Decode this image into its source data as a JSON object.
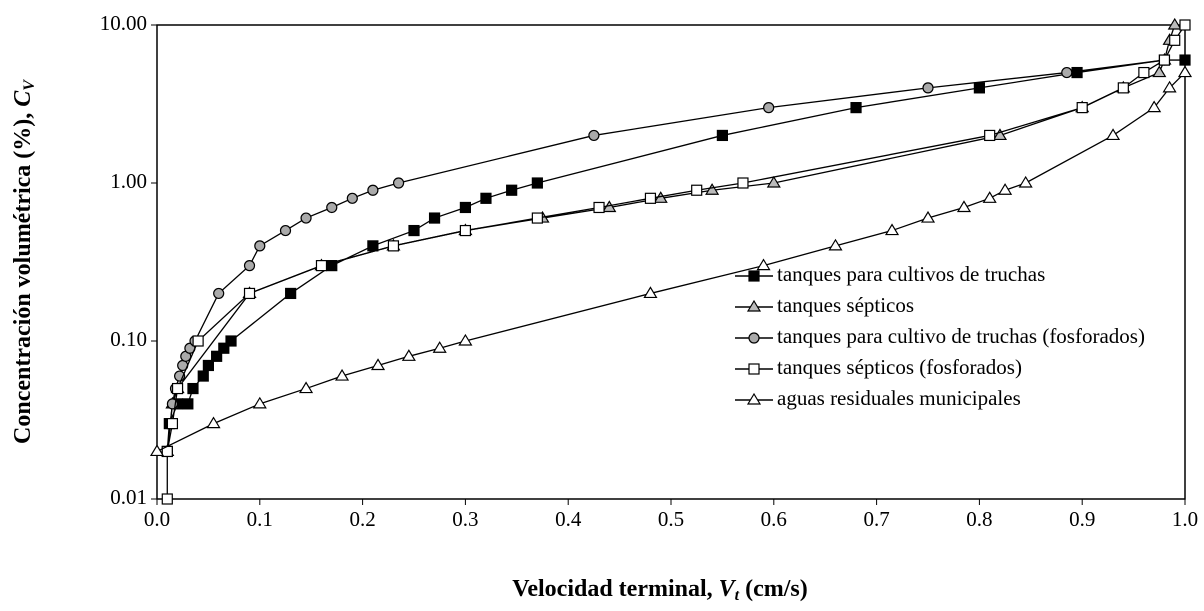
{
  "chart_data": {
    "type": "line",
    "xlabel": {
      "text": "Velocidad terminal, ",
      "symbol": "V",
      "sub": "t",
      "unit": " (cm/s)"
    },
    "ylabel": {
      "text": "Concentración volumétrica (%), ",
      "symbol": "C",
      "sub": "V"
    },
    "xlim": [
      0,
      1
    ],
    "ylim": [
      0.01,
      10
    ],
    "yscale": "log",
    "grid": false,
    "legend": "lower right",
    "xticks": [
      {
        "value": 0,
        "label": "0.0"
      },
      0.1,
      0.2,
      0.3,
      0.4,
      0.5,
      0.6,
      0.7,
      0.8,
      0.9,
      {
        "value": 1,
        "label": "1.0"
      }
    ],
    "yticks": [
      0.01,
      {
        "value": 0.1,
        "label": "0.10"
      },
      {
        "value": 1,
        "label": "1.00"
      },
      {
        "value": 10,
        "label": "10.00"
      }
    ],
    "series": [
      {
        "name": "tanques para cultivos de truchas",
        "color": "#000000",
        "marker": "square-filled",
        "marker_fill": "#000000",
        "x": [
          0.01,
          0.012,
          0.02,
          0.03,
          0.035,
          0.045,
          0.05,
          0.058,
          0.065,
          0.072,
          0.13,
          0.17,
          0.21,
          0.25,
          0.27,
          0.3,
          0.32,
          0.345,
          0.37,
          0.55,
          0.68,
          0.8,
          0.895,
          0.98,
          1.0
        ],
        "values": [
          0.02,
          0.03,
          0.04,
          0.04,
          0.05,
          0.06,
          0.07,
          0.08,
          0.09,
          0.1,
          0.2,
          0.3,
          0.4,
          0.5,
          0.6,
          0.7,
          0.8,
          0.9,
          1.0,
          2.0,
          3.0,
          4.0,
          5.0,
          6.0,
          6.0
        ]
      },
      {
        "name": "tanques sépticos",
        "color": "#000000",
        "marker": "triangle",
        "marker_fill": "#bbbbbb",
        "x": [
          0.01,
          0.015,
          0.02,
          0.09,
          0.16,
          0.23,
          0.3,
          0.375,
          0.44,
          0.49,
          0.54,
          0.6,
          0.82,
          0.9,
          0.94,
          0.975,
          0.98,
          0.985,
          0.99
        ],
        "values": [
          0.02,
          0.04,
          0.05,
          0.2,
          0.3,
          0.4,
          0.5,
          0.6,
          0.7,
          0.8,
          0.9,
          1.0,
          2.0,
          3.0,
          4.0,
          5.0,
          6.0,
          8.0,
          10.0
        ]
      },
      {
        "name": "tanques para cultivo de truchas (fosforados)",
        "color": "#000000",
        "marker": "circle",
        "marker_fill": "#aaaaaa",
        "x": [
          0.01,
          0.015,
          0.018,
          0.022,
          0.025,
          0.028,
          0.032,
          0.037,
          0.06,
          0.09,
          0.1,
          0.125,
          0.145,
          0.17,
          0.19,
          0.21,
          0.235,
          0.425,
          0.595,
          0.75,
          0.885,
          0.98
        ],
        "values": [
          0.02,
          0.04,
          0.05,
          0.06,
          0.07,
          0.08,
          0.09,
          0.1,
          0.2,
          0.3,
          0.4,
          0.5,
          0.6,
          0.7,
          0.8,
          0.9,
          1.0,
          2.0,
          3.0,
          4.0,
          5.0,
          6.0
        ]
      },
      {
        "name": "tanques sépticos (fosforados)",
        "color": "#000000",
        "marker": "square-open",
        "marker_fill": "#ffffff",
        "x": [
          0.01,
          0.01,
          0.015,
          0.02,
          0.04,
          0.09,
          0.16,
          0.23,
          0.3,
          0.37,
          0.43,
          0.48,
          0.525,
          0.57,
          0.81,
          0.9,
          0.94,
          0.96,
          0.98,
          0.99,
          1.0
        ],
        "values": [
          0.01,
          0.02,
          0.03,
          0.05,
          0.1,
          0.2,
          0.3,
          0.4,
          0.5,
          0.6,
          0.7,
          0.8,
          0.9,
          1.0,
          2.0,
          3.0,
          4.0,
          5.0,
          6.0,
          8.0,
          10.0
        ]
      },
      {
        "name": "aguas residuales municipales",
        "color": "#000000",
        "marker": "triangle",
        "marker_fill": "#ffffff",
        "x": [
          0.0,
          0.055,
          0.1,
          0.145,
          0.18,
          0.215,
          0.245,
          0.275,
          0.3,
          0.48,
          0.59,
          0.66,
          0.715,
          0.75,
          0.785,
          0.81,
          0.825,
          0.845,
          0.93,
          0.97,
          0.985,
          1.0
        ],
        "values": [
          0.02,
          0.03,
          0.04,
          0.05,
          0.06,
          0.07,
          0.08,
          0.09,
          0.1,
          0.2,
          0.3,
          0.4,
          0.5,
          0.6,
          0.7,
          0.8,
          0.9,
          1.0,
          2.0,
          3.0,
          4.0,
          5.0
        ]
      }
    ]
  }
}
